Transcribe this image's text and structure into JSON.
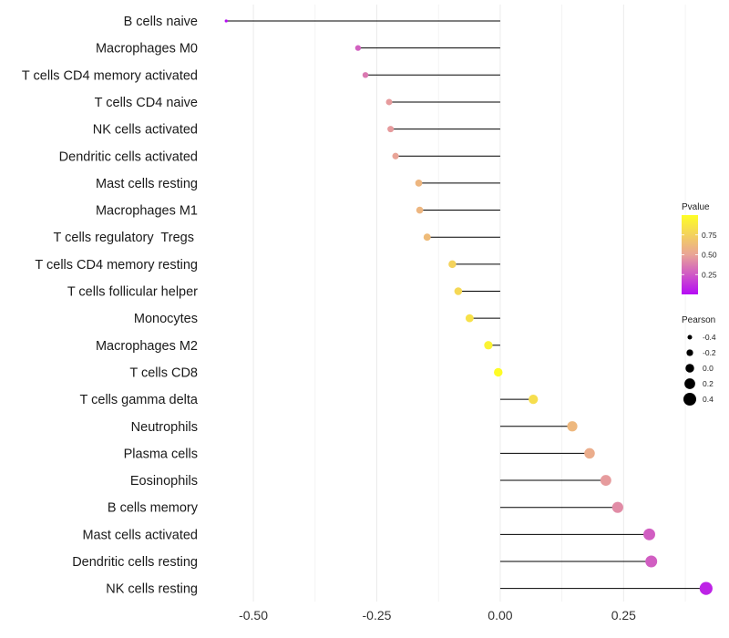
{
  "chart_data": {
    "type": "lollipop",
    "categories": [
      "B cells naive",
      "Macrophages M0",
      "T cells CD4 memory activated",
      "T cells CD4 naive",
      "NK cells activated",
      "Dendritic cells activated",
      "Mast cells resting",
      "Macrophages M1",
      "T cells regulatory  Tregs ",
      "T cells CD4 memory resting",
      "T cells follicular helper",
      "Monocytes",
      "Macrophages M2",
      "T cells CD8",
      "T cells gamma delta",
      "Neutrophils",
      "Plasma cells",
      "Eosinophils",
      "B cells memory",
      "Mast cells activated",
      "Dendritic cells resting",
      "NK cells resting"
    ],
    "pearson": [
      -0.555,
      -0.288,
      -0.273,
      -0.225,
      -0.222,
      -0.212,
      -0.165,
      -0.163,
      -0.148,
      -0.097,
      -0.085,
      -0.062,
      -0.024,
      -0.004,
      0.067,
      0.146,
      0.181,
      0.214,
      0.238,
      0.302,
      0.306,
      0.417
    ],
    "pvalue": [
      0.01,
      0.28,
      0.36,
      0.47,
      0.47,
      0.5,
      0.6,
      0.6,
      0.63,
      0.76,
      0.79,
      0.84,
      0.94,
      0.99,
      0.82,
      0.61,
      0.55,
      0.47,
      0.42,
      0.27,
      0.27,
      0.08
    ],
    "xlim": [
      -0.585,
      0.445
    ],
    "x_ticks": [
      -0.5,
      -0.25,
      0.0,
      0.25
    ],
    "x_tick_labels": [
      "-0.50",
      "-0.25",
      "0.00",
      "0.25"
    ],
    "xlabel": "",
    "ylabel": "",
    "grid": true,
    "colorbar": {
      "title": "Pvalue",
      "range": [
        0.0,
        1.0
      ],
      "ticks": [
        0.25,
        0.5,
        0.75
      ],
      "tick_labels": [
        "0.25",
        "0.50",
        "0.75"
      ],
      "colors": [
        "#b50bf5",
        "#e9a497",
        "#fefe25"
      ],
      "legend_position": "right"
    },
    "size_legend": {
      "title": "Pearson",
      "values": [
        -0.4,
        -0.2,
        0.0,
        0.2,
        0.4
      ],
      "labels": [
        "-0.4",
        "-0.2",
        "0.0",
        "0.2",
        "0.4"
      ]
    }
  }
}
